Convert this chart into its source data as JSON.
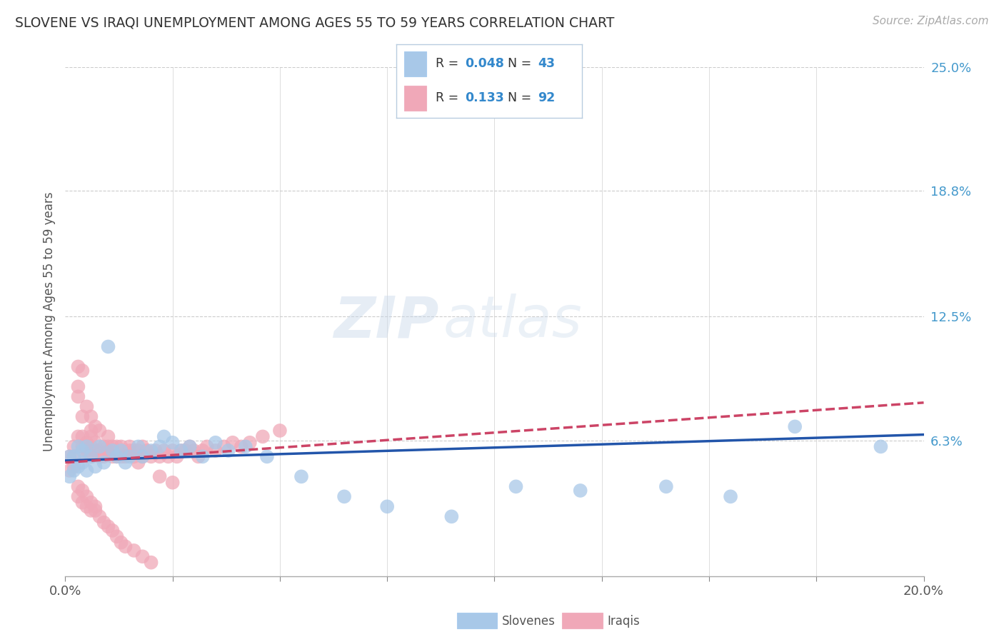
{
  "title": "SLOVENE VS IRAQI UNEMPLOYMENT AMONG AGES 55 TO 59 YEARS CORRELATION CHART",
  "source": "Source: ZipAtlas.com",
  "ylabel": "Unemployment Among Ages 55 to 59 years",
  "xlim": [
    0.0,
    0.2
  ],
  "ylim": [
    -0.005,
    0.25
  ],
  "ytick_positions": [
    0.063,
    0.125,
    0.188,
    0.25
  ],
  "ytick_labels": [
    "6.3%",
    "12.5%",
    "18.8%",
    "25.0%"
  ],
  "xtick_positions": [
    0.0,
    0.025,
    0.05,
    0.075,
    0.1,
    0.125,
    0.15,
    0.175,
    0.2
  ],
  "xtick_labels": [
    "0.0%",
    "",
    "",
    "",
    "",
    "",
    "",
    "",
    "20.0%"
  ],
  "slovenes_R": 0.048,
  "slovenes_N": 43,
  "iraqis_R": 0.133,
  "iraqis_N": 92,
  "slovene_color": "#a8c8e8",
  "iraqi_color": "#f0a8b8",
  "slovene_line_color": "#2255aa",
  "iraqi_line_color": "#cc4466",
  "legend_R_color": "#3388cc",
  "background_color": "#ffffff",
  "slovenes_x": [
    0.001,
    0.001,
    0.002,
    0.002,
    0.003,
    0.003,
    0.004,
    0.004,
    0.005,
    0.005,
    0.006,
    0.007,
    0.008,
    0.009,
    0.01,
    0.011,
    0.012,
    0.013,
    0.014,
    0.015,
    0.017,
    0.018,
    0.02,
    0.022,
    0.023,
    0.025,
    0.027,
    0.029,
    0.032,
    0.035,
    0.038,
    0.042,
    0.047,
    0.055,
    0.065,
    0.075,
    0.09,
    0.105,
    0.12,
    0.14,
    0.155,
    0.17,
    0.19
  ],
  "slovenes_y": [
    0.055,
    0.045,
    0.055,
    0.048,
    0.06,
    0.05,
    0.058,
    0.052,
    0.06,
    0.048,
    0.055,
    0.05,
    0.06,
    0.052,
    0.11,
    0.058,
    0.055,
    0.058,
    0.052,
    0.055,
    0.06,
    0.055,
    0.058,
    0.06,
    0.065,
    0.062,
    0.058,
    0.06,
    0.055,
    0.062,
    0.058,
    0.06,
    0.055,
    0.045,
    0.035,
    0.03,
    0.025,
    0.04,
    0.038,
    0.04,
    0.035,
    0.07,
    0.06
  ],
  "iraqis_x": [
    0.001,
    0.001,
    0.002,
    0.002,
    0.002,
    0.003,
    0.003,
    0.003,
    0.003,
    0.004,
    0.004,
    0.004,
    0.004,
    0.005,
    0.005,
    0.005,
    0.005,
    0.006,
    0.006,
    0.006,
    0.006,
    0.006,
    0.007,
    0.007,
    0.007,
    0.008,
    0.008,
    0.008,
    0.009,
    0.009,
    0.01,
    0.01,
    0.01,
    0.011,
    0.011,
    0.012,
    0.012,
    0.013,
    0.013,
    0.014,
    0.015,
    0.015,
    0.016,
    0.016,
    0.017,
    0.017,
    0.018,
    0.018,
    0.019,
    0.02,
    0.021,
    0.022,
    0.023,
    0.024,
    0.025,
    0.026,
    0.027,
    0.028,
    0.029,
    0.03,
    0.031,
    0.032,
    0.033,
    0.035,
    0.037,
    0.039,
    0.041,
    0.043,
    0.046,
    0.05,
    0.003,
    0.003,
    0.004,
    0.004,
    0.005,
    0.005,
    0.006,
    0.006,
    0.007,
    0.007,
    0.008,
    0.009,
    0.01,
    0.011,
    0.012,
    0.013,
    0.014,
    0.016,
    0.018,
    0.02,
    0.022,
    0.025
  ],
  "iraqis_y": [
    0.055,
    0.048,
    0.06,
    0.055,
    0.05,
    0.085,
    0.09,
    0.1,
    0.065,
    0.098,
    0.075,
    0.065,
    0.06,
    0.062,
    0.058,
    0.08,
    0.055,
    0.06,
    0.068,
    0.075,
    0.055,
    0.065,
    0.062,
    0.07,
    0.058,
    0.058,
    0.068,
    0.055,
    0.06,
    0.055,
    0.065,
    0.058,
    0.06,
    0.06,
    0.055,
    0.055,
    0.06,
    0.055,
    0.06,
    0.055,
    0.058,
    0.06,
    0.055,
    0.058,
    0.052,
    0.058,
    0.055,
    0.06,
    0.058,
    0.055,
    0.058,
    0.055,
    0.058,
    0.055,
    0.058,
    0.055,
    0.058,
    0.058,
    0.06,
    0.058,
    0.055,
    0.058,
    0.06,
    0.058,
    0.06,
    0.062,
    0.06,
    0.062,
    0.065,
    0.068,
    0.04,
    0.035,
    0.038,
    0.032,
    0.035,
    0.03,
    0.032,
    0.028,
    0.03,
    0.028,
    0.025,
    0.022,
    0.02,
    0.018,
    0.015,
    0.012,
    0.01,
    0.008,
    0.005,
    0.002,
    0.045,
    0.042
  ],
  "watermark_text": "ZIPatlas",
  "watermark_zip_color": "#c8d8e8",
  "watermark_atlas_color": "#c8d8e8"
}
